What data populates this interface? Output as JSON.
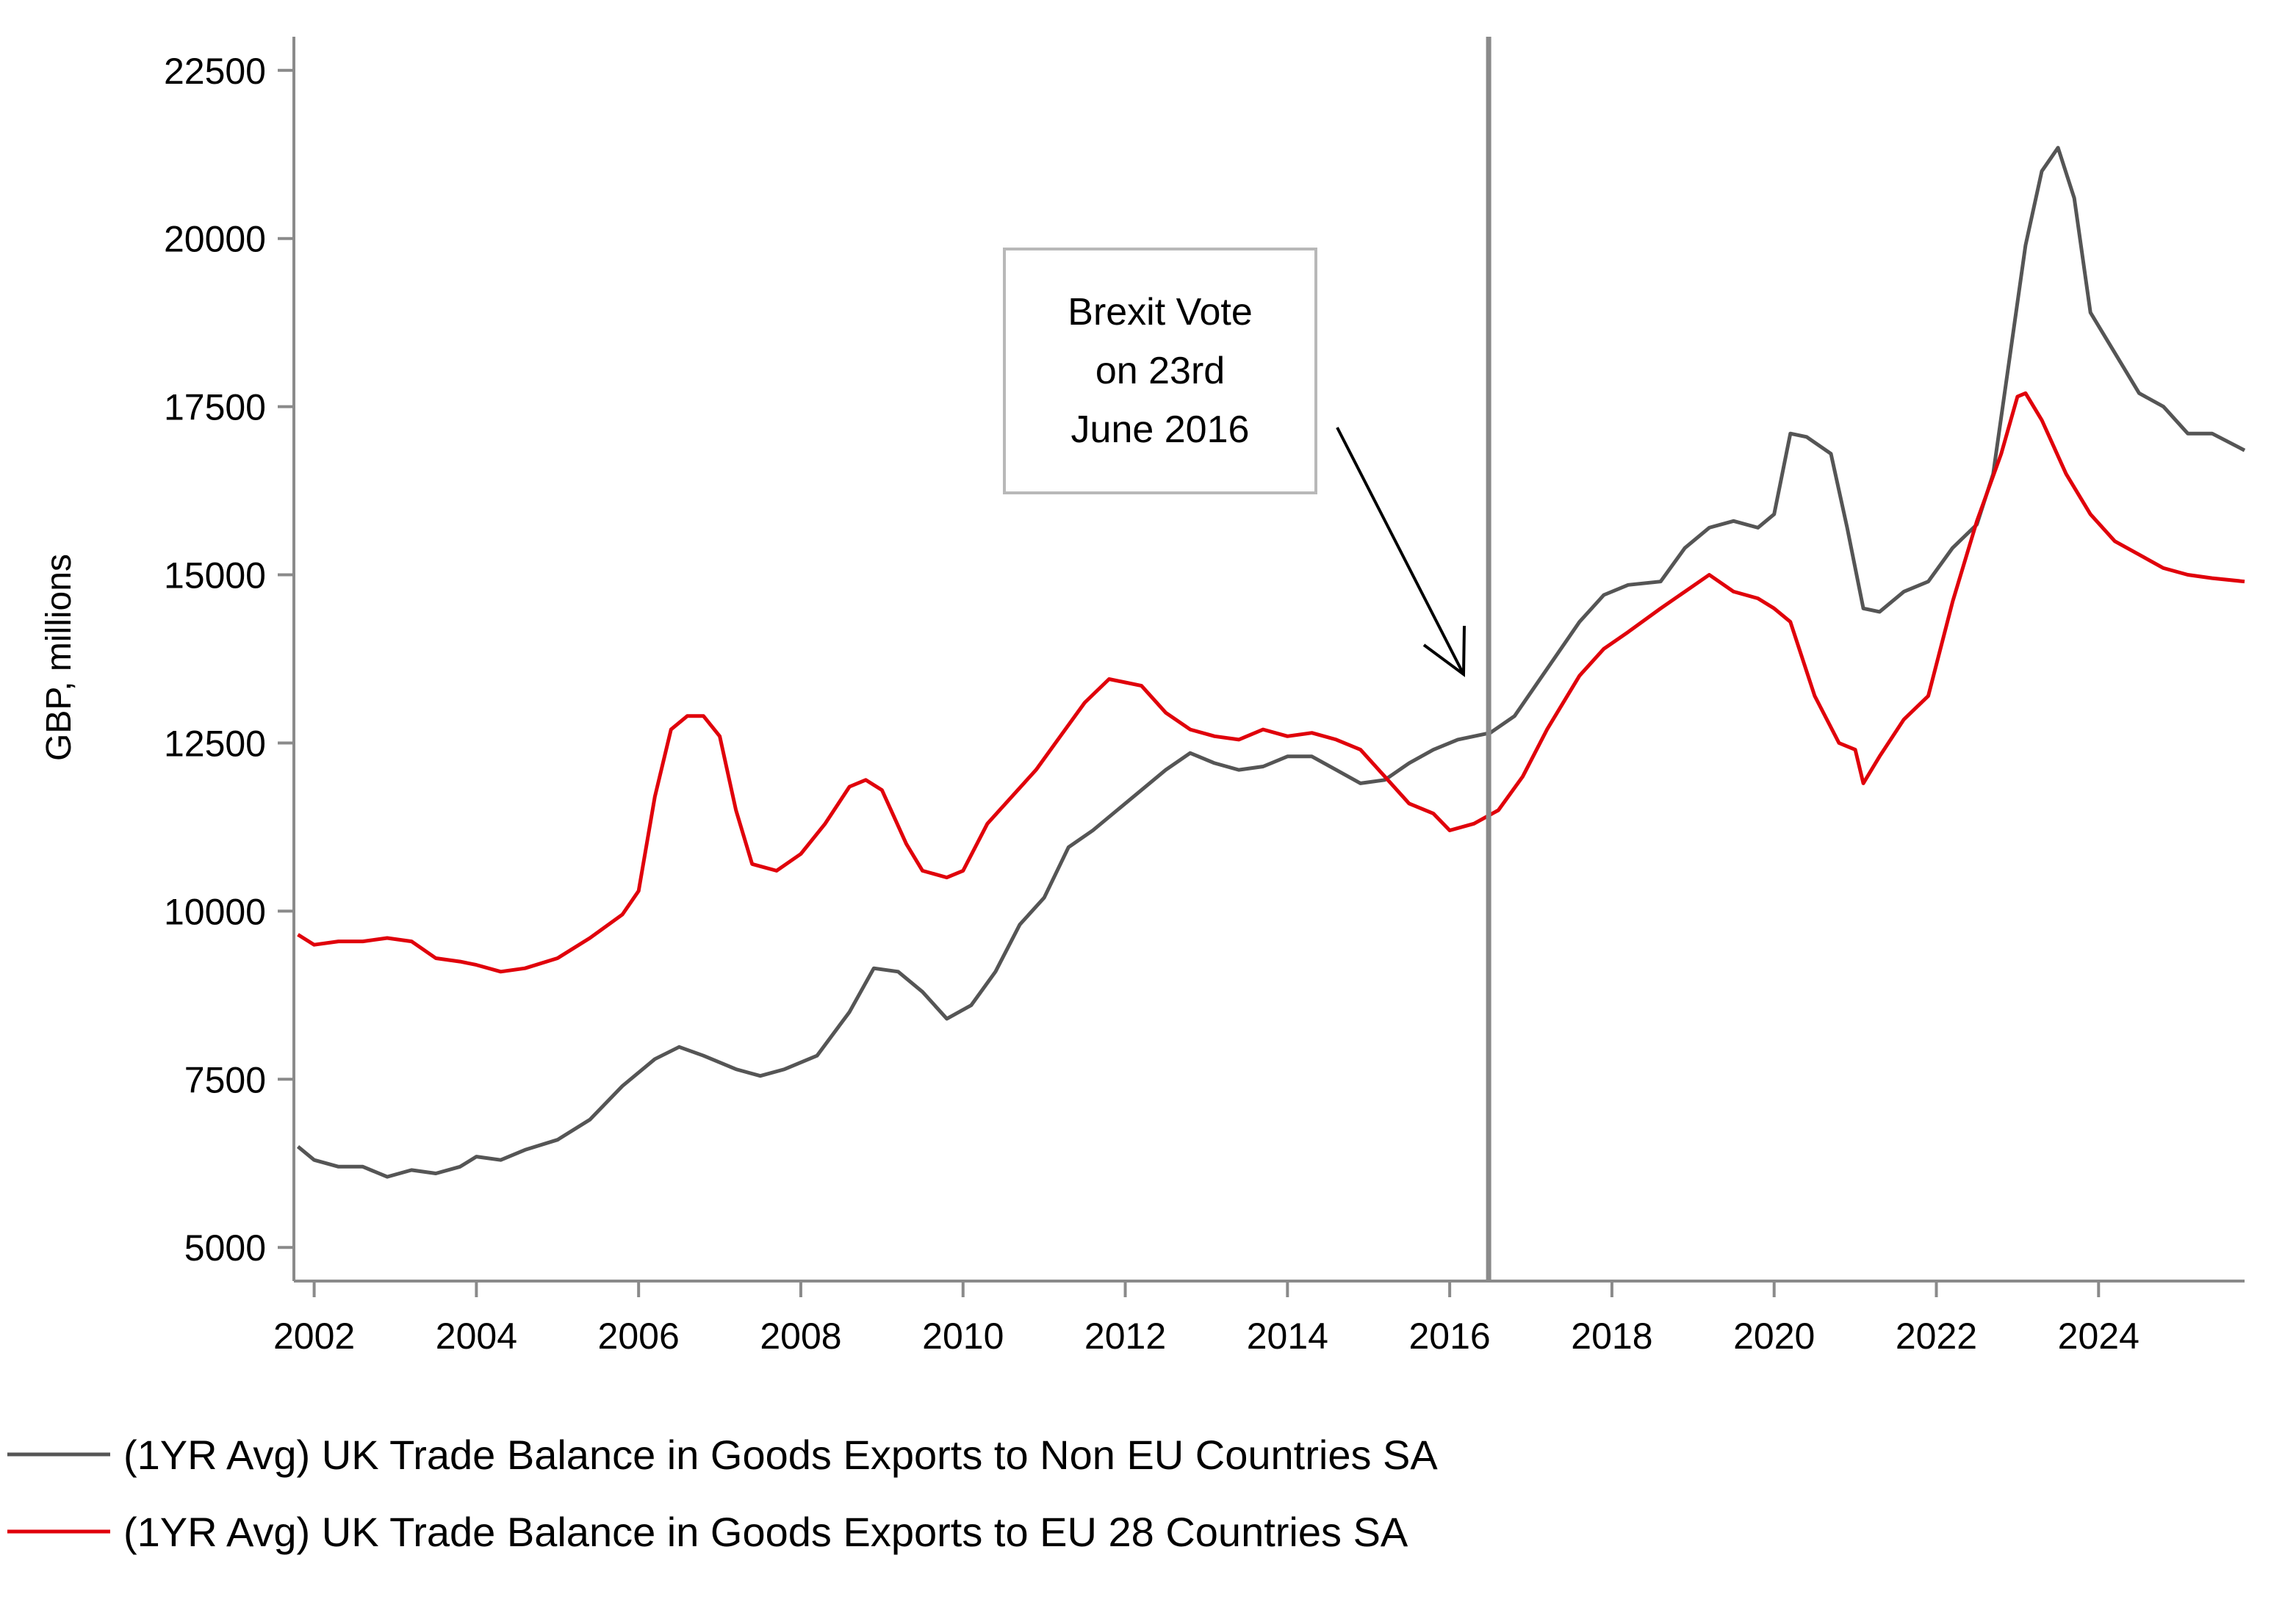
{
  "chart_data": {
    "type": "line",
    "title": "",
    "xlabel": "",
    "ylabel": "GBP, millions",
    "xlim": [
      2001.75,
      2025.8
    ],
    "ylim": [
      4500,
      23000
    ],
    "x_ticks": [
      2002,
      2004,
      2006,
      2008,
      2010,
      2012,
      2014,
      2016,
      2018,
      2020,
      2022,
      2024
    ],
    "y_ticks": [
      5000,
      7500,
      10000,
      12500,
      15000,
      17500,
      20000,
      22500
    ],
    "grid": false,
    "legend_position": "bottom",
    "annotation": {
      "lines": [
        "Brexit Vote",
        "on 23rd",
        "June 2016"
      ],
      "vline_x": 2016.48
    },
    "series": [
      {
        "name": "(1YR Avg) UK Trade Balance in Goods Exports to Non EU Countries SA",
        "color": "#555555",
        "x": [
          2001.8,
          2002.0,
          2002.3,
          2002.6,
          2002.9,
          2003.2,
          2003.5,
          2003.8,
          2004.0,
          2004.3,
          2004.6,
          2005.0,
          2005.4,
          2005.8,
          2006.2,
          2006.5,
          2006.8,
          2007.2,
          2007.5,
          2007.8,
          2008.2,
          2008.6,
          2008.9,
          2009.2,
          2009.5,
          2009.8,
          2010.1,
          2010.4,
          2010.7,
          2011.0,
          2011.3,
          2011.6,
          2011.9,
          2012.2,
          2012.5,
          2012.8,
          2013.1,
          2013.4,
          2013.7,
          2014.0,
          2014.3,
          2014.6,
          2014.9,
          2015.2,
          2015.5,
          2015.8,
          2016.1,
          2016.5,
          2016.8,
          2017.2,
          2017.6,
          2017.9,
          2018.2,
          2018.6,
          2018.9,
          2019.2,
          2019.5,
          2019.8,
          2020.0,
          2020.2,
          2020.4,
          2020.7,
          2020.9,
          2021.1,
          2021.3,
          2021.6,
          2021.9,
          2022.2,
          2022.5,
          2022.7,
          2022.9,
          2023.1,
          2023.3,
          2023.5,
          2023.7,
          2023.9,
          2024.2,
          2024.5,
          2024.8,
          2025.1,
          2025.4,
          2025.8
        ],
        "values": [
          6500,
          6300,
          6200,
          6200,
          6050,
          6150,
          6100,
          6200,
          6350,
          6300,
          6450,
          6600,
          6900,
          7400,
          7800,
          7980,
          7850,
          7650,
          7550,
          7650,
          7850,
          8500,
          9150,
          9100,
          8800,
          8400,
          8600,
          9100,
          9800,
          10200,
          10950,
          11200,
          11500,
          11800,
          12100,
          12350,
          12200,
          12100,
          12150,
          12300,
          12300,
          12100,
          11900,
          11950,
          12200,
          12400,
          12550,
          12650,
          12900,
          13600,
          14300,
          14700,
          14850,
          14900,
          15400,
          15700,
          15800,
          15700,
          15900,
          17100,
          17050,
          16800,
          15700,
          14500,
          14450,
          14750,
          14900,
          15400,
          15750,
          16500,
          18200,
          19900,
          21000,
          21350,
          20600,
          18900,
          18300,
          17700,
          17500,
          17100,
          17100,
          16850
        ]
      },
      {
        "name": "(1YR Avg) UK Trade Balance in Goods Exports to EU 28 Countries SA",
        "color": "#e0000a",
        "x": [
          2001.8,
          2002.0,
          2002.3,
          2002.6,
          2002.9,
          2003.2,
          2003.5,
          2003.8,
          2004.0,
          2004.3,
          2004.6,
          2005.0,
          2005.4,
          2005.8,
          2006.0,
          2006.2,
          2006.4,
          2006.6,
          2006.8,
          2007.0,
          2007.2,
          2007.4,
          2007.7,
          2008.0,
          2008.3,
          2008.6,
          2008.8,
          2009.0,
          2009.3,
          2009.5,
          2009.8,
          2010.0,
          2010.3,
          2010.6,
          2010.9,
          2011.2,
          2011.5,
          2011.8,
          2012.0,
          2012.2,
          2012.5,
          2012.8,
          2013.1,
          2013.4,
          2013.7,
          2014.0,
          2014.3,
          2014.6,
          2014.9,
          2015.2,
          2015.5,
          2015.8,
          2016.0,
          2016.3,
          2016.6,
          2016.9,
          2017.2,
          2017.6,
          2017.9,
          2018.2,
          2018.6,
          2018.9,
          2019.2,
          2019.5,
          2019.8,
          2020.0,
          2020.2,
          2020.5,
          2020.8,
          2021.0,
          2021.1,
          2021.3,
          2021.6,
          2021.9,
          2022.2,
          2022.5,
          2022.8,
          2023.0,
          2023.1,
          2023.3,
          2023.6,
          2023.9,
          2024.2,
          2024.5,
          2024.8,
          2025.1,
          2025.4,
          2025.8
        ],
        "values": [
          9650,
          9500,
          9550,
          9550,
          9600,
          9550,
          9300,
          9250,
          9200,
          9100,
          9150,
          9300,
          9600,
          9950,
          10300,
          11700,
          12700,
          12900,
          12900,
          12600,
          11500,
          10700,
          10600,
          10850,
          11300,
          11850,
          11950,
          11800,
          11000,
          10600,
          10500,
          10600,
          11300,
          11700,
          12100,
          12600,
          13100,
          13450,
          13400,
          13350,
          12950,
          12700,
          12600,
          12550,
          12700,
          12600,
          12650,
          12550,
          12400,
          12000,
          11600,
          11450,
          11200,
          11300,
          11500,
          12000,
          12700,
          13500,
          13900,
          14150,
          14500,
          14750,
          15000,
          14750,
          14650,
          14500,
          14300,
          13200,
          12500,
          12400,
          11900,
          12300,
          12850,
          13200,
          14600,
          15800,
          16800,
          17650,
          17700,
          17300,
          16500,
          15900,
          15500,
          15300,
          15100,
          15000,
          14950,
          14900
        ]
      }
    ]
  }
}
